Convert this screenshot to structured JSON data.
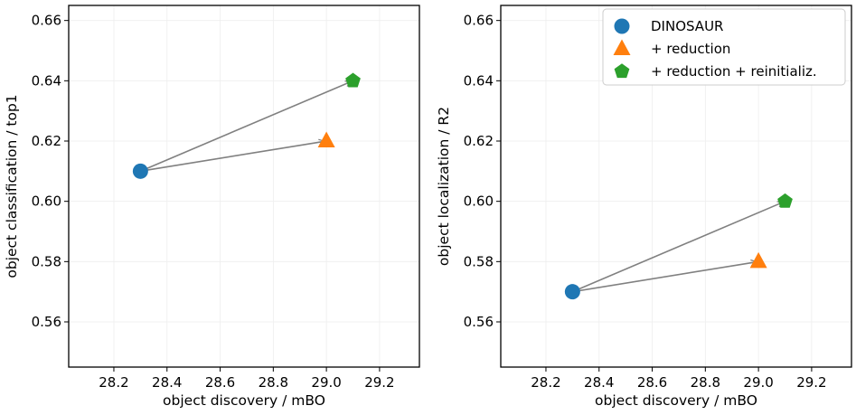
{
  "chart_data": [
    {
      "type": "scatter",
      "xlabel": "object discovery / mBO",
      "ylabel": "object classification / top1",
      "xlim": [
        28.03,
        29.35
      ],
      "ylim": [
        0.545,
        0.665
      ],
      "xticks": [
        "28.2",
        "28.4",
        "28.6",
        "28.8",
        "29.0",
        "29.2"
      ],
      "yticks": [
        "0.56",
        "0.58",
        "0.60",
        "0.62",
        "0.64",
        "0.66"
      ],
      "grid": true,
      "series": [
        {
          "name": "DINOSAUR",
          "marker": "circle",
          "x": 28.3,
          "y": 0.61
        },
        {
          "name": "+ reduction",
          "marker": "triangle",
          "x": 29.0,
          "y": 0.62
        },
        {
          "name": "+ reduction + reinitializ.",
          "marker": "pentagon",
          "x": 29.1,
          "y": 0.64
        }
      ],
      "arrows": [
        {
          "from": [
            28.3,
            0.61
          ],
          "to": [
            29.0,
            0.62
          ]
        },
        {
          "from": [
            28.3,
            0.61
          ],
          "to": [
            29.1,
            0.64
          ]
        }
      ]
    },
    {
      "type": "scatter",
      "xlabel": "object discovery / mBO",
      "ylabel": "object localization / R2",
      "xlim": [
        28.03,
        29.35
      ],
      "ylim": [
        0.545,
        0.665
      ],
      "xticks": [
        "28.2",
        "28.4",
        "28.6",
        "28.8",
        "29.0",
        "29.2"
      ],
      "yticks": [
        "0.56",
        "0.58",
        "0.60",
        "0.62",
        "0.64",
        "0.66"
      ],
      "grid": true,
      "legend": "top-right",
      "series": [
        {
          "name": "DINOSAUR",
          "marker": "circle",
          "x": 28.3,
          "y": 0.57
        },
        {
          "name": "+ reduction",
          "marker": "triangle",
          "x": 29.0,
          "y": 0.58
        },
        {
          "name": "+ reduction + reinitializ.",
          "marker": "pentagon",
          "x": 29.1,
          "y": 0.6
        }
      ],
      "arrows": [
        {
          "from": [
            28.3,
            0.57
          ],
          "to": [
            29.0,
            0.58
          ]
        },
        {
          "from": [
            28.3,
            0.57
          ],
          "to": [
            29.1,
            0.6
          ]
        }
      ]
    }
  ],
  "legend": {
    "items": [
      "DINOSAUR",
      "+ reduction",
      "+ reduction + reinitializ."
    ]
  },
  "colors": {
    "circle": "#1f77b4",
    "triangle": "#ff7f0e",
    "pentagon": "#2ca02c",
    "arrow": "#808080"
  }
}
